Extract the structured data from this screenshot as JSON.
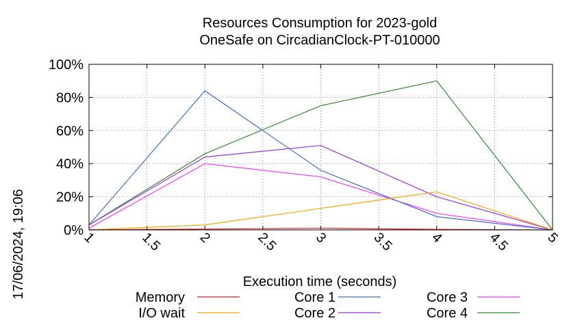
{
  "side_label": "17/06/2024, 19:06",
  "chart_data": {
    "type": "line",
    "title_line1": "Resources Consumption for 2023-gold",
    "title_line2": "OneSafe on CircadianClock-PT-010000",
    "xlabel": "Execution time (seconds)",
    "ylabel": "",
    "xlim": [
      1,
      5
    ],
    "ylim": [
      0,
      100
    ],
    "x_ticks": [
      "1",
      "1.5",
      "2",
      "2.5",
      "3",
      "3.5",
      "4",
      "4.5",
      "5"
    ],
    "y_ticks": [
      "0%",
      "20%",
      "40%",
      "60%",
      "80%",
      "100%"
    ],
    "grid": true,
    "legend_position": "bottom",
    "x": [
      1,
      2,
      3,
      4,
      5
    ],
    "series": [
      {
        "name": "Memory",
        "color": "#e41a1c",
        "values": [
          0,
          0.5,
          1,
          0.3,
          0
        ]
      },
      {
        "name": "I/O wait",
        "color": "#ffa500",
        "values": [
          0,
          3,
          13,
          23,
          0
        ]
      },
      {
        "name": "Core 1",
        "color": "#3a6fd8",
        "values": [
          3,
          84,
          36,
          8,
          0
        ]
      },
      {
        "name": "Core 2",
        "color": "#9b30e6",
        "values": [
          3,
          44,
          51,
          20,
          0
        ]
      },
      {
        "name": "Core 3",
        "color": "#ff33ff",
        "values": [
          1,
          40,
          32,
          10,
          0
        ]
      },
      {
        "name": "Core 4",
        "color": "#2e8b2e",
        "values": [
          3,
          46,
          75,
          90,
          0
        ]
      }
    ]
  }
}
